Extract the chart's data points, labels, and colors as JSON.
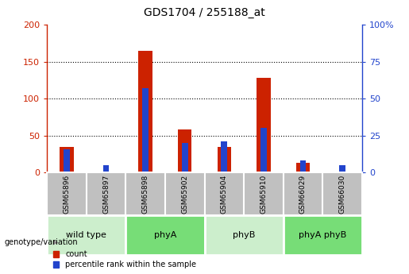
{
  "title": "GDS1704 / 255188_at",
  "samples": [
    "GSM65896",
    "GSM65897",
    "GSM65898",
    "GSM65902",
    "GSM65904",
    "GSM65910",
    "GSM66029",
    "GSM66030"
  ],
  "count_values": [
    35,
    0,
    165,
    58,
    35,
    128,
    13,
    0
  ],
  "percentile_values": [
    16,
    5,
    57,
    20,
    21,
    30,
    8,
    5
  ],
  "groups": [
    {
      "label": "wild type",
      "start": 0,
      "end": 2,
      "color": "#cceecc"
    },
    {
      "label": "phyA",
      "start": 2,
      "end": 4,
      "color": "#77dd77"
    },
    {
      "label": "phyB",
      "start": 4,
      "end": 6,
      "color": "#cceecc"
    },
    {
      "label": "phyA phyB",
      "start": 6,
      "end": 8,
      "color": "#77dd77"
    }
  ],
  "ylim_left": [
    0,
    200
  ],
  "ylim_right": [
    0,
    100
  ],
  "yticks_left": [
    0,
    50,
    100,
    150,
    200
  ],
  "ytick_labels_left": [
    "0",
    "50",
    "100",
    "150",
    "200"
  ],
  "yticks_right": [
    0,
    25,
    50,
    75,
    100
  ],
  "ytick_labels_right": [
    "0",
    "25",
    "50",
    "75",
    "100%"
  ],
  "count_color": "#cc2200",
  "percentile_color": "#2244cc",
  "grid_color": "black",
  "sample_box_color": "#c0c0c0",
  "legend_count": "count",
  "legend_percentile": "percentile rank within the sample",
  "genotype_label": "genotype/variation"
}
